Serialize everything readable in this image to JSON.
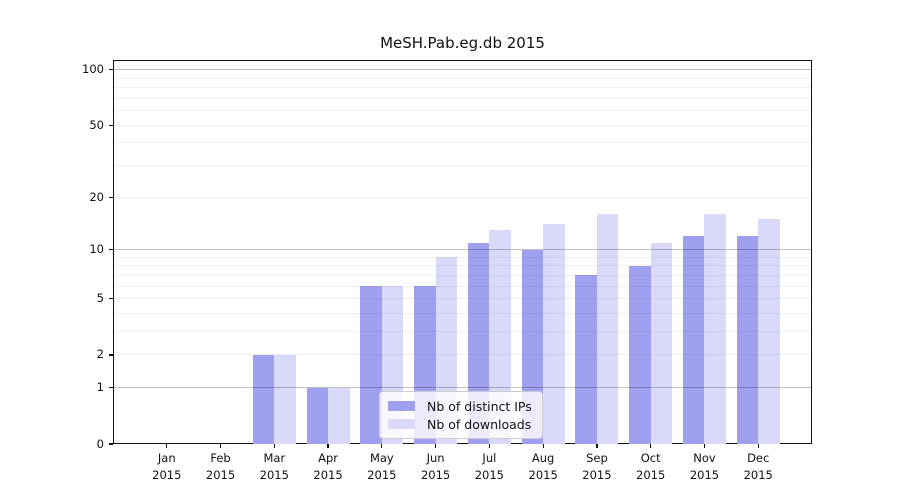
{
  "chart_data": {
    "type": "bar",
    "title": "MeSH.Pab.eg.db 2015",
    "categories": [
      "Jan",
      "Feb",
      "Mar",
      "Apr",
      "May",
      "Jun",
      "Jul",
      "Aug",
      "Sep",
      "Oct",
      "Nov",
      "Dec"
    ],
    "year_label": "2015",
    "series": [
      {
        "key": "distinct-ips",
        "name": "Nb of distinct IPs",
        "color": "#a0a0f0",
        "values": [
          0,
          0,
          2,
          1,
          6,
          6,
          11,
          10,
          7,
          8,
          12,
          12
        ]
      },
      {
        "key": "downloads",
        "name": "Nb of downloads",
        "color": "#d9d9f9",
        "values": [
          0,
          0,
          2,
          1,
          6,
          9,
          13,
          14,
          16,
          11,
          16,
          15
        ]
      }
    ],
    "yscale": "log1p",
    "ylim": [
      0,
      113
    ],
    "y_tick_labels": [
      0,
      1,
      2,
      5,
      10,
      20,
      50,
      100
    ],
    "y_major_gridlines": [
      1,
      10,
      100
    ],
    "y_minor_gridlines": [
      2,
      3,
      4,
      5,
      6,
      7,
      8,
      9,
      20,
      30,
      40,
      50,
      60,
      70,
      80,
      90
    ],
    "grid": true,
    "legend_position": "lower center inside plot",
    "colors": {
      "grid_major": "rgba(0,0,0,0.24)",
      "grid_minor": "rgba(0,0,0,0.06)",
      "axis": "#111111"
    }
  }
}
